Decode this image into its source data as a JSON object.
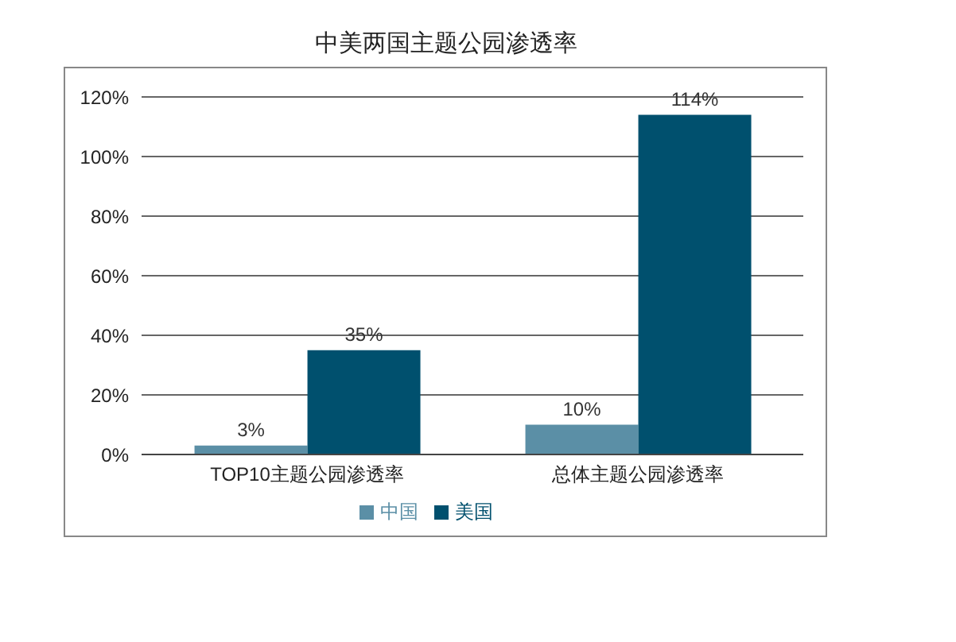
{
  "chart_data": {
    "type": "bar",
    "title": "中美两国主题公园渗透率",
    "categories": [
      "TOP10主题公园渗透率",
      "总体主题公园渗透率"
    ],
    "series": [
      {
        "name": "中国",
        "color": "#5b8fa6",
        "values": [
          3,
          10
        ],
        "value_labels": [
          "3%",
          "10%"
        ]
      },
      {
        "name": "美国",
        "color": "#00506e",
        "values": [
          35,
          114
        ],
        "value_labels": [
          "35%",
          "114%"
        ]
      }
    ],
    "ylim": [
      0,
      120
    ],
    "yticks": [
      {
        "value": 0,
        "label": "0%"
      },
      {
        "value": 20,
        "label": "20%"
      },
      {
        "value": 40,
        "label": "40%"
      },
      {
        "value": 60,
        "label": "60%"
      },
      {
        "value": 80,
        "label": "80%"
      },
      {
        "value": 100,
        "label": "100%"
      },
      {
        "value": 120,
        "label": "120%"
      }
    ],
    "grid": "y",
    "legend": "bottom"
  }
}
